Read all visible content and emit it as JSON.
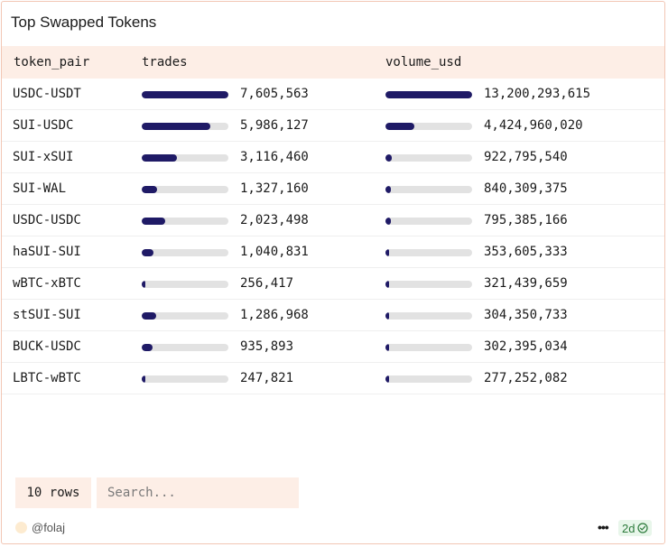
{
  "card": {
    "title": "Top Swapped Tokens"
  },
  "table": {
    "columns": [
      "token_pair",
      "trades",
      "volume_usd"
    ],
    "rows": [
      {
        "token_pair": "USDC-USDT",
        "trades": "7,605,563",
        "volume_usd": "13,200,293,615",
        "trades_value": 7605563,
        "volume_value": 13200293615
      },
      {
        "token_pair": "SUI-USDC",
        "trades": "5,986,127",
        "volume_usd": "4,424,960,020",
        "trades_value": 5986127,
        "volume_value": 4424960020
      },
      {
        "token_pair": "SUI-xSUI",
        "trades": "3,116,460",
        "volume_usd": "922,795,540",
        "trades_value": 3116460,
        "volume_value": 922795540
      },
      {
        "token_pair": "SUI-WAL",
        "trades": "1,327,160",
        "volume_usd": "840,309,375",
        "trades_value": 1327160,
        "volume_value": 840309375
      },
      {
        "token_pair": "USDC-USDC",
        "trades": "2,023,498",
        "volume_usd": "795,385,166",
        "trades_value": 2023498,
        "volume_value": 795385166
      },
      {
        "token_pair": "haSUI-SUI",
        "trades": "1,040,831",
        "volume_usd": "353,605,333",
        "trades_value": 1040831,
        "volume_value": 353605333
      },
      {
        "token_pair": "wBTC-xBTC",
        "trades": "256,417",
        "volume_usd": "321,439,659",
        "trades_value": 256417,
        "volume_value": 321439659
      },
      {
        "token_pair": "stSUI-SUI",
        "trades": "1,286,968",
        "volume_usd": "304,350,733",
        "trades_value": 1286968,
        "volume_value": 304350733
      },
      {
        "token_pair": "BUCK-USDC",
        "trades": "935,893",
        "volume_usd": "302,395,034",
        "trades_value": 935893,
        "volume_value": 302395034
      },
      {
        "token_pair": "LBTC-wBTC",
        "trades": "247,821",
        "volume_usd": "277,252,082",
        "trades_value": 247821,
        "volume_value": 277252082
      }
    ]
  },
  "footer": {
    "rows_label": "10 rows",
    "search_placeholder": "Search...",
    "author": "@folaj",
    "more_icon": "more-icon",
    "age": "2d",
    "age_icon": "check-circle-icon"
  },
  "colors": {
    "accent_bg": "#fdeee6",
    "bar_fill": "#1f1a66",
    "bar_track": "#e2e2e2",
    "border": "#f2c6b4",
    "badge_green": "#2c7a3b"
  }
}
